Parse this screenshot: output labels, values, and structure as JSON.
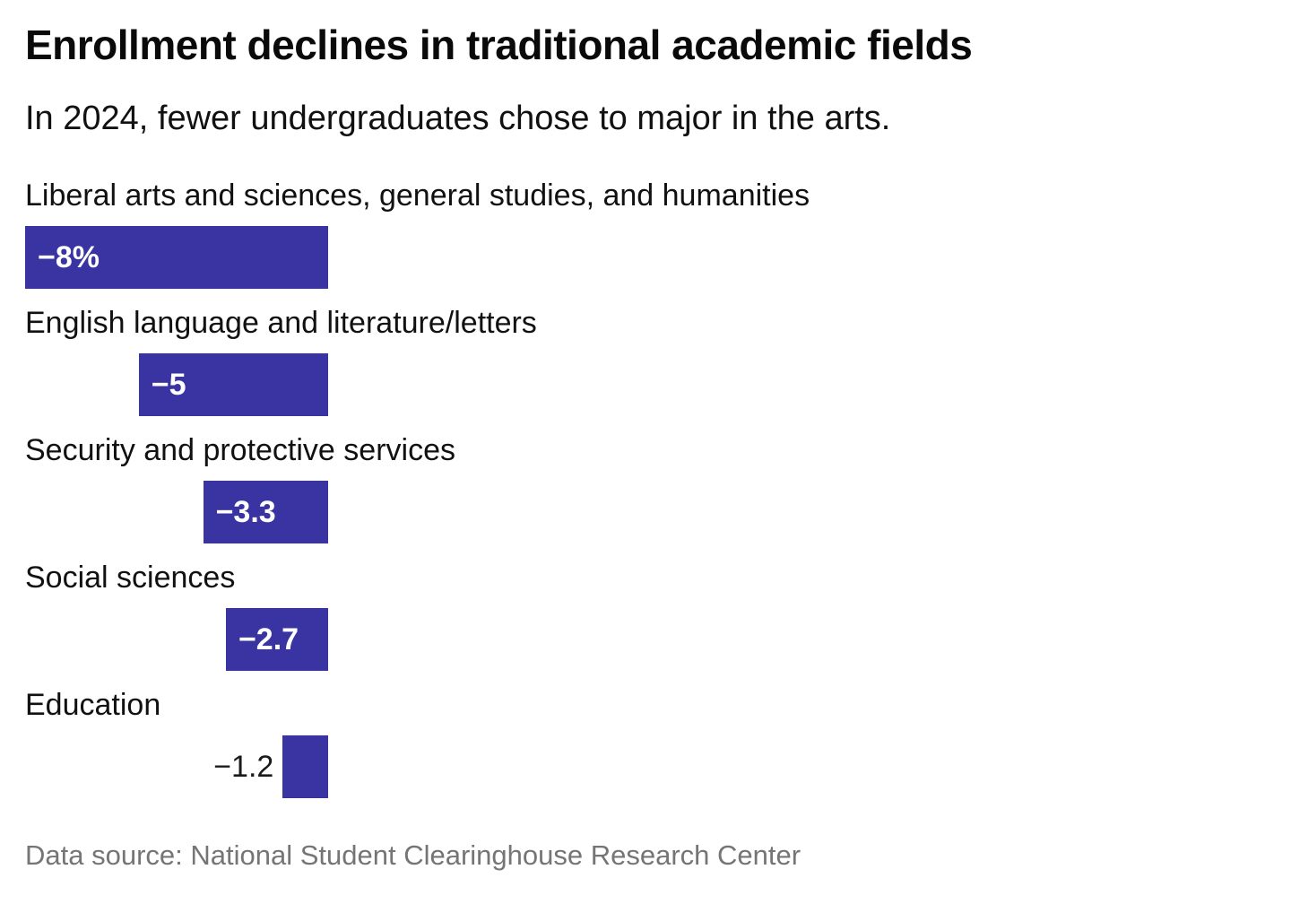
{
  "header": {
    "title": "Enrollment declines in traditional academic fields",
    "subtitle": "In 2024, fewer undergraduates chose to major in the arts."
  },
  "chart_data": {
    "type": "bar",
    "orientation": "horizontal",
    "title": "Enrollment declines in traditional academic fields",
    "subtitle": "In 2024, fewer undergraduates chose to major in the arts.",
    "xlabel": "",
    "ylabel": "",
    "xlim": [
      -8,
      0
    ],
    "grid": false,
    "legend": false,
    "unit": "percent",
    "categories": [
      "Liberal arts and sciences, general studies, and humanities",
      "English language and literature/letters",
      "Security and protective services",
      "Social sciences",
      "Education"
    ],
    "values": [
      -8,
      -5,
      -3.3,
      -2.7,
      -1.2
    ],
    "value_labels": [
      "−8%",
      "−5",
      "−3.3",
      "−2.7",
      "−1.2"
    ],
    "label_inside_bar": [
      true,
      true,
      true,
      true,
      false
    ]
  },
  "footer": {
    "source": "Data source: National Student Clearinghouse Research Center"
  },
  "colors": {
    "bar": "#3A34A3",
    "value_inside_text": "#FFFFFF",
    "value_outside_text": "#1A1A1A",
    "title_text": "#0A0A0A",
    "source_text": "#757575",
    "background": "#FFFFFF"
  }
}
